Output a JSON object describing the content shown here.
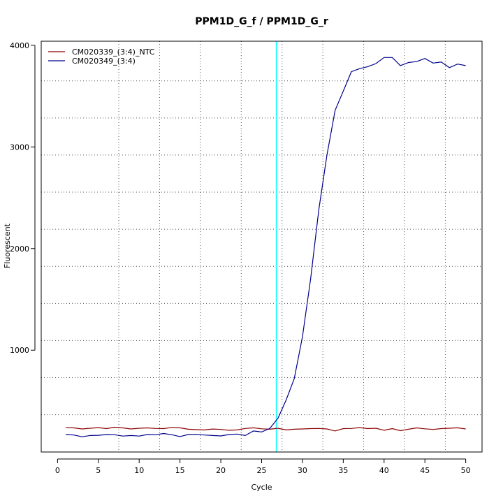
{
  "chart_data": {
    "type": "line",
    "title": "PPM1D_G_f / PPM1D_G_r",
    "xlabel": "Cycle",
    "ylabel": "Fluorescent",
    "xlim": [
      -2,
      52
    ],
    "ylim": [
      -2,
      4040
    ],
    "x_ticks": [
      0,
      5,
      10,
      15,
      20,
      25,
      30,
      35,
      40,
      45,
      50
    ],
    "y_ticks": [
      1000,
      2000,
      3000,
      4000
    ],
    "grid": true,
    "grid_x": [
      7.5,
      12.5,
      17.5,
      22.5,
      27.5,
      32.5,
      37.5,
      42.5,
      47.5
    ],
    "grid_y": [
      365,
      730,
      1095,
      1460,
      1825,
      2190,
      2555,
      2920,
      3285,
      3650
    ],
    "threshold_line": {
      "x": 26.8,
      "color": "#00ffff"
    },
    "legend_position": "top-left",
    "series": [
      {
        "name": "CM020339_(3:4)_NTC",
        "color": "#8b0000",
        "x": [
          1,
          2,
          3,
          4,
          5,
          6,
          7,
          8,
          9,
          10,
          11,
          12,
          13,
          14,
          15,
          16,
          17,
          18,
          19,
          20,
          21,
          22,
          23,
          24,
          25,
          26,
          27,
          28,
          29,
          30,
          31,
          32,
          33,
          34,
          35,
          36,
          37,
          38,
          39,
          40,
          41,
          42,
          43,
          44,
          45,
          46,
          47,
          48,
          49,
          50
        ],
        "values": [
          240,
          235,
          225,
          232,
          238,
          228,
          242,
          235,
          225,
          232,
          235,
          230,
          228,
          240,
          236,
          222,
          218,
          215,
          224,
          220,
          212,
          215,
          230,
          236,
          226,
          222,
          232,
          215,
          222,
          225,
          228,
          230,
          225,
          205,
          228,
          230,
          238,
          228,
          232,
          212,
          228,
          208,
          222,
          235,
          226,
          220,
          228,
          232,
          236,
          225
        ]
      },
      {
        "name": "CM020349_(3:4)",
        "color": "#00008b",
        "x": [
          1,
          2,
          3,
          4,
          5,
          6,
          7,
          8,
          9,
          10,
          11,
          12,
          13,
          14,
          15,
          16,
          17,
          18,
          19,
          20,
          21,
          22,
          23,
          24,
          25,
          26,
          27,
          28,
          29,
          30,
          31,
          32,
          33,
          34,
          35,
          36,
          37,
          38,
          39,
          40,
          41,
          42,
          43,
          44,
          45,
          46,
          47,
          48,
          49,
          50
        ],
        "values": [
          170,
          165,
          148,
          160,
          162,
          170,
          168,
          155,
          160,
          155,
          170,
          168,
          180,
          168,
          150,
          170,
          172,
          165,
          160,
          156,
          170,
          175,
          160,
          205,
          195,
          230,
          330,
          510,
          720,
          1130,
          1700,
          2380,
          2920,
          3360,
          3550,
          3740,
          3770,
          3790,
          3820,
          3880,
          3880,
          3800,
          3830,
          3840,
          3870,
          3825,
          3835,
          3780,
          3815,
          3800
        ]
      }
    ]
  }
}
